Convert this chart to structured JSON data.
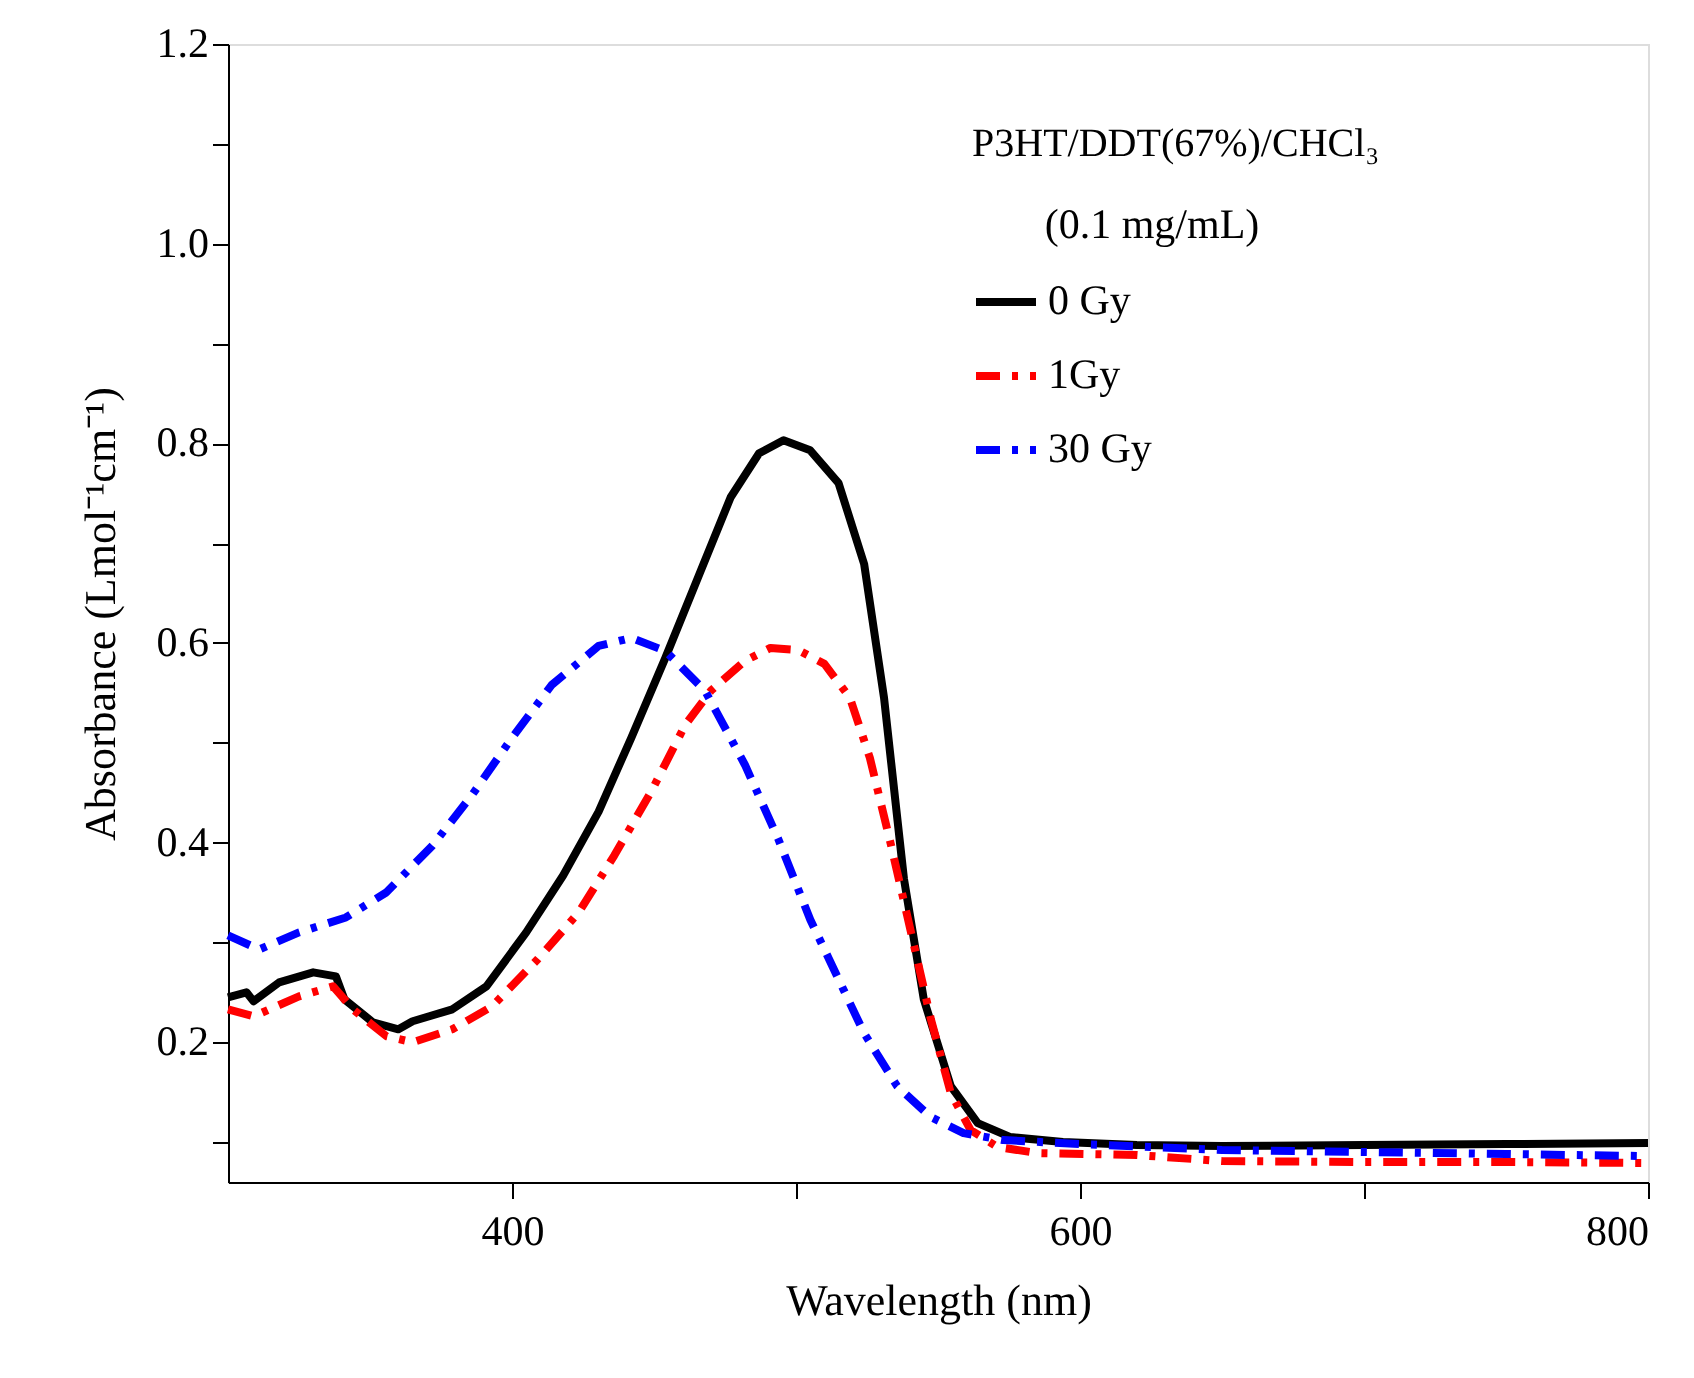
{
  "chart_data": {
    "type": "line",
    "xlabel": "Wavelength (nm)",
    "ylabel": "Absorbance (Lmol⁻¹cm⁻¹)",
    "legend_title": "P3HT/DDT(67%)/CHCl₃",
    "annotations": [
      "(0.1 mg/mL)"
    ],
    "xlim": [
      300,
      800
    ],
    "ylim": [
      0.06,
      1.2
    ],
    "xticks": [
      400,
      {
        "value": 500,
        "label": null
      },
      600,
      {
        "value": 700,
        "label": null
      },
      800
    ],
    "yticks": [
      {
        "value": 0.1,
        "label": null
      },
      0.2,
      {
        "value": 0.3,
        "label": null
      },
      0.4,
      {
        "value": 0.5,
        "label": null
      },
      0.6,
      {
        "value": 0.7,
        "label": null
      },
      0.8,
      {
        "value": 0.9,
        "label": null
      },
      {
        "value": 1.0,
        "label": "1.0"
      },
      {
        "value": 1.1,
        "label": null
      },
      1.2
    ],
    "grid": false,
    "legend": "top right",
    "marker": "none",
    "series": [
      {
        "name": "0 Gy",
        "color": "#000000",
        "line_style": "solid",
        "x": [
          300,
          306.5,
          309,
          318,
          330,
          338,
          341,
          351,
          360,
          365,
          379,
          391,
          405,
          418,
          430.5,
          442,
          454,
          466,
          477,
          487,
          495.6,
          505,
          515,
          524,
          531,
          538,
          545,
          554.5,
          564,
          575.5,
          594,
          620,
          650,
          700,
          750,
          800
        ],
        "values": [
          0.245,
          0.25,
          0.241,
          0.26,
          0.27,
          0.266,
          0.243,
          0.22,
          0.213,
          0.221,
          0.233,
          0.256,
          0.31,
          0.367,
          0.431,
          0.505,
          0.585,
          0.669,
          0.746,
          0.79,
          0.803,
          0.793,
          0.76,
          0.679,
          0.545,
          0.364,
          0.243,
          0.156,
          0.119,
          0.105,
          0.1,
          0.097,
          0.096,
          0.097,
          0.098,
          0.099
        ]
      },
      {
        "name": "1Gy",
        "color": "#ff0000",
        "line_style": "dashed",
        "x": [
          300,
          309,
          325,
          337,
          344,
          355.8,
          365,
          379,
          393,
          409,
          423.5,
          436,
          449,
          461,
          470,
          482,
          491,
          500.7,
          510,
          519,
          526,
          533.5,
          540.5,
          547.5,
          554.5,
          561.5,
          571,
          585,
          620,
          650,
          700,
          750,
          800
        ],
        "values": [
          0.233,
          0.226,
          0.246,
          0.256,
          0.233,
          0.206,
          0.2,
          0.213,
          0.236,
          0.283,
          0.33,
          0.387,
          0.451,
          0.518,
          0.552,
          0.582,
          0.595,
          0.593,
          0.579,
          0.545,
          0.485,
          0.397,
          0.31,
          0.223,
          0.149,
          0.112,
          0.095,
          0.089,
          0.087,
          0.081,
          0.08,
          0.08,
          0.079
        ]
      },
      {
        "name": "30 Gy",
        "color": "#0000ff",
        "line_style": "dashed",
        "x": [
          300,
          311,
          325,
          341.5,
          355.7,
          372,
          386,
          400,
          414,
          430.5,
          442,
          454,
          468,
          482,
          493.7,
          505,
          515,
          524,
          535.6,
          547.5,
          559,
          573,
          600,
          650,
          700,
          750,
          800
        ],
        "values": [
          0.307,
          0.293,
          0.31,
          0.325,
          0.35,
          0.397,
          0.448,
          0.505,
          0.558,
          0.597,
          0.605,
          0.592,
          0.552,
          0.478,
          0.404,
          0.323,
          0.263,
          0.209,
          0.156,
          0.125,
          0.109,
          0.102,
          0.098,
          0.092,
          0.09,
          0.088,
          0.086
        ]
      }
    ]
  }
}
